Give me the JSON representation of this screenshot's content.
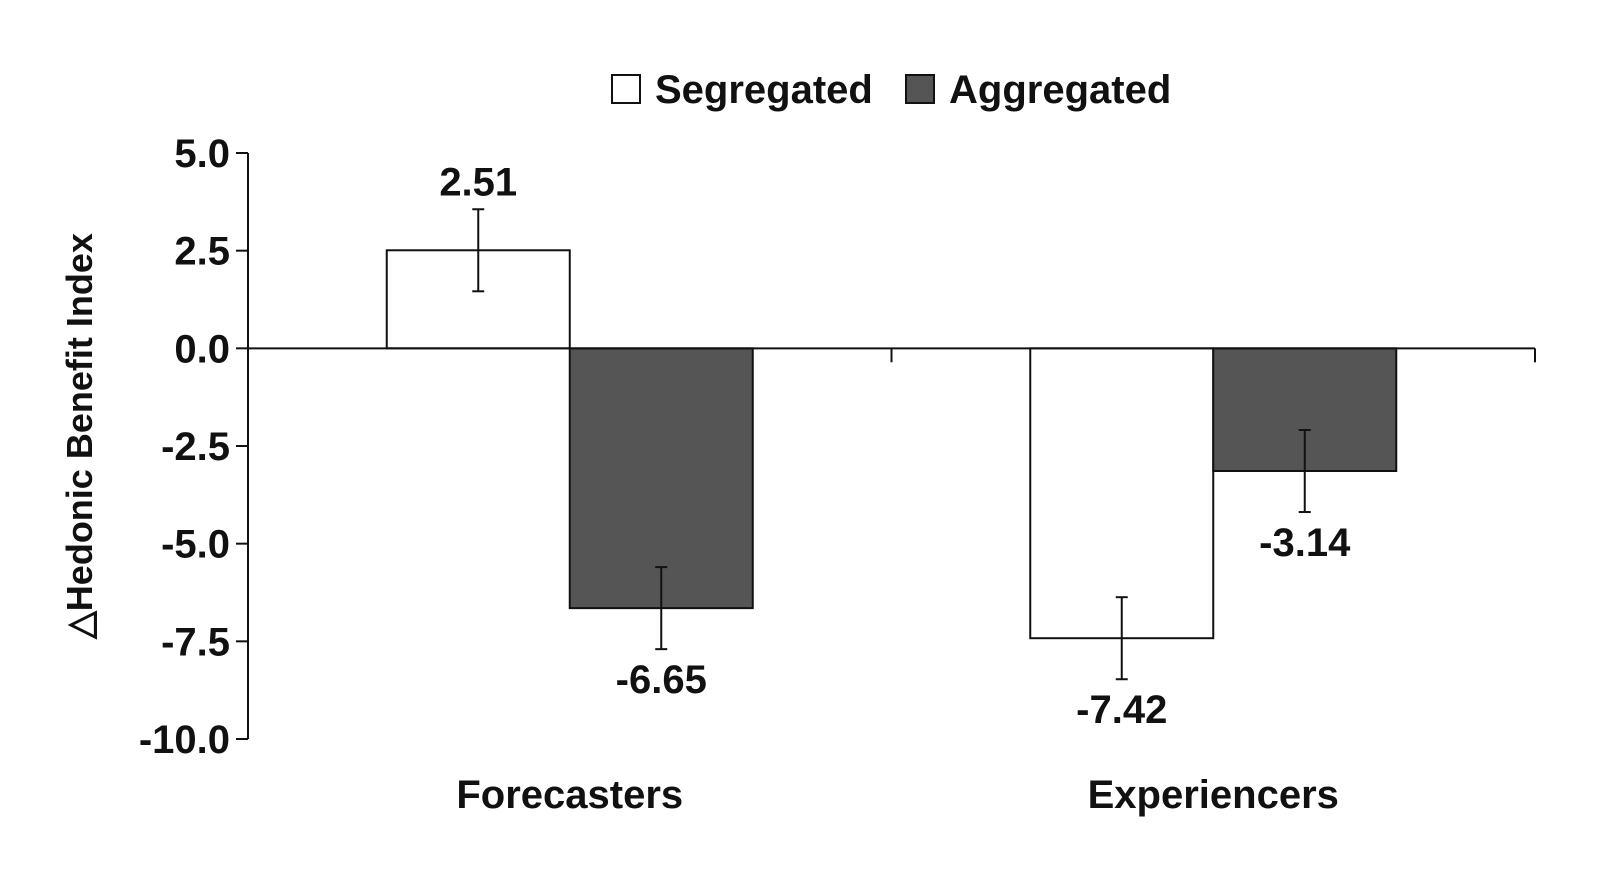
{
  "chart_data": {
    "type": "bar",
    "categories": [
      "Forecasters",
      "Experiencers"
    ],
    "series": [
      {
        "name": "Segregated",
        "values": [
          2.51,
          -7.42
        ],
        "error": [
          1.05,
          1.05
        ],
        "color": "#ffffff"
      },
      {
        "name": "Aggregated",
        "values": [
          -6.65,
          -3.14
        ],
        "error": [
          1.05,
          1.05
        ],
        "color": "#555555"
      }
    ],
    "value_labels": [
      [
        "2.51",
        "-7.42"
      ],
      [
        "-6.65",
        "-3.14"
      ]
    ],
    "ylabel": "△Hedonic Benefit Index",
    "ylim": [
      -10,
      5
    ],
    "yticks": [
      5,
      2.5,
      0,
      -2.5,
      -5,
      -7.5,
      -10
    ],
    "ytick_labels": [
      "5.0",
      "2.5",
      "0.0",
      "-2.5",
      "-5.0",
      "-7.5",
      "-10.0"
    ],
    "legend_position": "top-center",
    "grid": false
  }
}
